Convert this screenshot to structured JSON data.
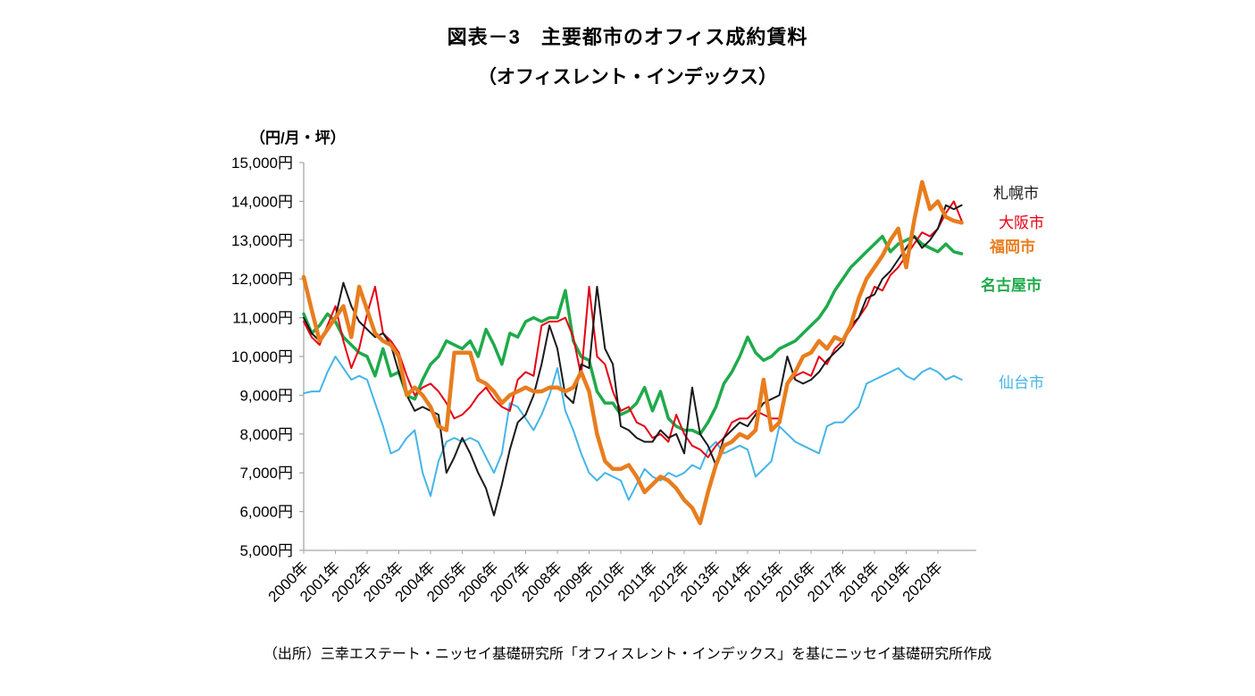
{
  "title": {
    "line1": "図表－3　主要都市のオフィス成約賃料",
    "line2": "（オフィスレント・インデックス）"
  },
  "y_axis_unit": "（円/月・坪）",
  "source": "（出所）三幸エステート・ニッセイ基礎研究所「オフィスレント・インデックス」を基にニッセイ基礎研究所作成",
  "chart_data": {
    "type": "line",
    "title": "主要都市のオフィス成約賃料（オフィスレント・インデックス）",
    "ylabel": "円/月・坪",
    "ylim": [
      5000,
      15000
    ],
    "y_tick_step": 1000,
    "y_tick_labels": [
      "5,000円",
      "6,000円",
      "7,000円",
      "8,000円",
      "9,000円",
      "10,000円",
      "11,000円",
      "12,000円",
      "13,000円",
      "14,000円",
      "15,000円"
    ],
    "x_tick_labels": [
      "2000年",
      "2001年",
      "2002年",
      "2003年",
      "2004年",
      "2005年",
      "2006年",
      "2007年",
      "2008年",
      "2009年",
      "2010年",
      "2011年",
      "2012年",
      "2013年",
      "2014年",
      "2015年",
      "2016年",
      "2017年",
      "2018年",
      "2019年",
      "2020年"
    ],
    "x_frequency": "quarterly",
    "grid": false,
    "legend_position": "right",
    "series": [
      {
        "key": "sapporo",
        "name": "札幌市",
        "color": "#1a1a1a",
        "width": 2,
        "values": [
          11000,
          10600,
          10400,
          10700,
          11000,
          11900,
          11300,
          10900,
          10700,
          10500,
          10600,
          10300,
          9600,
          9000,
          8600,
          8700,
          8600,
          8500,
          7000,
          7400,
          7900,
          7500,
          7000,
          6600,
          5900,
          6700,
          7600,
          8300,
          8500,
          9000,
          9800,
          10800,
          10200,
          9000,
          8800,
          9800,
          9700,
          11800,
          10200,
          9800,
          8200,
          8100,
          7900,
          7800,
          7800,
          8100,
          7900,
          8000,
          7500,
          9200,
          8000,
          7700,
          7200,
          7900,
          8100,
          8300,
          8200,
          8500,
          8800,
          8900,
          9000,
          10000,
          9400,
          9300,
          9400,
          9600,
          9900,
          10100,
          10300,
          10800,
          11000,
          11500,
          11600,
          12000,
          12200,
          12500,
          12800,
          13100,
          12800,
          13000,
          13300,
          13900,
          13800,
          13900
        ]
      },
      {
        "key": "osaka",
        "name": "大阪市",
        "color": "#e60012",
        "width": 2,
        "values": [
          10900,
          10500,
          10300,
          10800,
          11300,
          10400,
          9700,
          10200,
          11100,
          11800,
          10600,
          10400,
          10100,
          9500,
          9000,
          9200,
          9300,
          9100,
          8800,
          8400,
          8500,
          8700,
          9000,
          9200,
          8900,
          8700,
          8600,
          9400,
          9600,
          9500,
          10800,
          10900,
          10900,
          11000,
          10500,
          9500,
          11800,
          10000,
          9800,
          9100,
          8600,
          8700,
          8300,
          8200,
          7900,
          8000,
          7800,
          8500,
          8000,
          7700,
          7600,
          7400,
          7700,
          7900,
          8300,
          8400,
          8400,
          8600,
          8500,
          8400,
          8400,
          9300,
          9500,
          9600,
          9500,
          10000,
          9800,
          10200,
          10400,
          10700,
          11000,
          11300,
          11800,
          11700,
          12100,
          12300,
          12600,
          12900,
          13200,
          13100,
          13300,
          13700,
          14000,
          13500
        ]
      },
      {
        "key": "fukuoka",
        "name": "福岡市",
        "color": "#e87d1e",
        "width": 4.5,
        "values": [
          12050,
          11200,
          10400,
          10700,
          11000,
          11300,
          10500,
          11800,
          11200,
          10600,
          10400,
          10300,
          10000,
          9000,
          9200,
          9000,
          8700,
          8200,
          8100,
          10100,
          10100,
          10100,
          9400,
          9300,
          9100,
          8800,
          9000,
          9100,
          9200,
          9100,
          9100,
          9200,
          9200,
          9100,
          9200,
          9600,
          9100,
          8000,
          7300,
          7100,
          7100,
          7200,
          6900,
          6500,
          6700,
          6900,
          6800,
          6600,
          6300,
          6100,
          5700,
          6500,
          7200,
          7700,
          7800,
          8000,
          7900,
          8100,
          9400,
          8100,
          8300,
          9300,
          9600,
          10000,
          10100,
          10400,
          10200,
          10500,
          10400,
          10800,
          11500,
          12000,
          12300,
          12600,
          13000,
          13300,
          12300,
          13500,
          14500,
          13800,
          14000,
          13600,
          13500,
          13450
        ]
      },
      {
        "key": "nagoya",
        "name": "名古屋市",
        "color": "#1faa4b",
        "width": 3.5,
        "values": [
          11100,
          10600,
          10800,
          11100,
          10900,
          10500,
          10300,
          10100,
          10000,
          9500,
          10200,
          9500,
          9600,
          9000,
          8900,
          9400,
          9800,
          10000,
          10400,
          10300,
          10200,
          10400,
          10000,
          10700,
          10300,
          9800,
          10600,
          10500,
          10900,
          11000,
          10900,
          11000,
          11000,
          11700,
          10400,
          10000,
          9900,
          9100,
          8800,
          8800,
          8500,
          8600,
          8800,
          9200,
          8600,
          9100,
          8400,
          8200,
          8100,
          8100,
          8000,
          8300,
          8700,
          9300,
          9600,
          10000,
          10500,
          10100,
          9900,
          10000,
          10200,
          10300,
          10400,
          10600,
          10800,
          11000,
          11300,
          11700,
          12000,
          12300,
          12500,
          12700,
          12900,
          13100,
          12700,
          12900,
          13000,
          13100,
          12900,
          12800,
          12700,
          12900,
          12700,
          12650
        ]
      },
      {
        "key": "sendai",
        "name": "仙台市",
        "color": "#45b5e8",
        "width": 2,
        "values": [
          9050,
          9100,
          9100,
          9600,
          10000,
          9700,
          9400,
          9500,
          9400,
          8800,
          8200,
          7500,
          7600,
          7900,
          8100,
          7000,
          6400,
          7300,
          7800,
          7900,
          7800,
          7900,
          7800,
          7400,
          7000,
          7500,
          8800,
          8700,
          8400,
          8100,
          8500,
          9000,
          9700,
          8600,
          8100,
          7500,
          7000,
          6800,
          7000,
          6900,
          6800,
          6300,
          6700,
          7100,
          6900,
          6800,
          7000,
          6900,
          7000,
          7200,
          7100,
          7600,
          7800,
          7500,
          7600,
          7700,
          7600,
          6900,
          7100,
          7300,
          8200,
          8000,
          7800,
          7700,
          7600,
          7500,
          8200,
          8300,
          8300,
          8500,
          8700,
          9300,
          9400,
          9500,
          9600,
          9700,
          9500,
          9400,
          9600,
          9700,
          9600,
          9400,
          9500,
          9400
        ]
      }
    ]
  }
}
